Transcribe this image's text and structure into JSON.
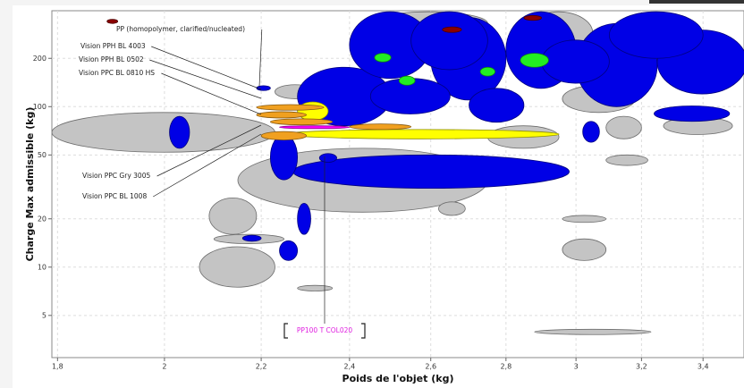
{
  "chart_data": {
    "type": "range-bubble",
    "xlabel": "Poids de l'objet (kg)",
    "ylabel": "Charge Max admissible (kg)",
    "xscale": "log",
    "yscale": "log",
    "grid": true,
    "xlim": [
      1.79,
      3.54
    ],
    "ylim": [
      2.73,
      396
    ],
    "xticks": [
      {
        "value": 1.8,
        "label": "1,8"
      },
      2,
      {
        "value": 2.2,
        "label": "2,2"
      },
      {
        "value": 2.4,
        "label": "2,4"
      },
      {
        "value": 2.6,
        "label": "2,6"
      },
      {
        "value": 2.8,
        "label": "2,8"
      },
      3,
      {
        "value": 3.2,
        "label": "3,2"
      },
      {
        "value": 3.4,
        "label": "3,4"
      }
    ],
    "yticks": [
      5,
      10,
      20,
      50,
      100,
      200
    ],
    "annotations": [
      "PP (homopolymer, clarified/nucleated)",
      "Vision PPH BL 4003",
      "Vision PPH BL 0502",
      "Vision PPC BL 0810 HS",
      "Vision PPC Gry 3005",
      "Vision PPC BL 1008",
      "PP100 T COL020"
    ],
    "series": [
      {
        "color": "#c4c4c4",
        "values": [
          [
            1.79,
            2.23,
            52,
            92
          ],
          [
            2.15,
            2.75,
            22,
            55
          ],
          [
            2.07,
            2.23,
            7.5,
            13.4
          ],
          [
            2.09,
            2.19,
            16,
            27
          ],
          [
            2.1,
            2.25,
            14,
            16
          ],
          [
            2.28,
            2.36,
            7.1,
            7.7
          ],
          [
            2.96,
            3.09,
            11,
            15
          ],
          [
            2.88,
            3.23,
            3.8,
            4.1
          ],
          [
            2.96,
            3.09,
            19,
            21
          ],
          [
            3.09,
            3.2,
            63,
            87
          ],
          [
            2.62,
            2.69,
            21,
            25.5
          ],
          [
            2.85,
            3.05,
            210,
            390
          ],
          [
            2.45,
            2.75,
            280,
            390
          ],
          [
            2.23,
            2.32,
            112,
            137
          ],
          [
            3.09,
            3.22,
            43,
            50
          ],
          [
            2.75,
            2.95,
            55,
            76
          ],
          [
            2.96,
            3.18,
            92,
            136
          ],
          [
            3.27,
            3.5,
            67,
            86
          ]
        ]
      },
      {
        "color": "#0000e6",
        "values": [
          [
            2.27,
            2.98,
            31,
            50
          ],
          [
            2.01,
            2.05,
            55,
            87
          ],
          [
            2.28,
            2.31,
            16,
            25
          ],
          [
            2.24,
            2.28,
            11,
            14.6
          ],
          [
            2.16,
            2.2,
            14.5,
            15.8
          ],
          [
            3.24,
            3.49,
            81,
            101
          ],
          [
            2.22,
            2.28,
            35,
            67
          ],
          [
            2.28,
            2.5,
            76,
            176
          ],
          [
            2.4,
            2.6,
            150,
            390
          ],
          [
            2.6,
            2.8,
            110,
            360
          ],
          [
            2.8,
            3.0,
            130,
            390
          ],
          [
            3.0,
            3.25,
            100,
            330
          ],
          [
            3.25,
            3.55,
            120,
            300
          ],
          [
            2.55,
            2.75,
            170,
            390
          ],
          [
            2.45,
            2.65,
            90,
            150
          ],
          [
            2.7,
            2.85,
            80,
            130
          ],
          [
            2.9,
            3.1,
            140,
            260
          ],
          [
            3.1,
            3.4,
            200,
            390
          ],
          [
            3.02,
            3.07,
            60,
            81
          ],
          [
            2.33,
            2.37,
            45,
            51
          ],
          [
            2.19,
            2.22,
            126,
            135
          ]
        ]
      },
      {
        "color": "#ffff00",
        "values": [
          [
            2.25,
            2.95,
            63,
            72
          ],
          [
            2.28,
            2.35,
            82,
            107
          ]
        ]
      },
      {
        "color": "#f0a020",
        "values": [
          [
            2.19,
            2.34,
            95,
            103
          ],
          [
            2.19,
            2.3,
            85,
            93
          ],
          [
            2.22,
            2.36,
            77,
            84
          ],
          [
            2.2,
            2.3,
            62,
            70
          ],
          [
            2.4,
            2.55,
            72,
            78
          ]
        ]
      },
      {
        "color": "#ff00ff",
        "values": [
          [
            2.24,
            2.4,
            73,
            76
          ]
        ]
      },
      {
        "color": "#22ee22",
        "values": [
          [
            2.46,
            2.5,
            190,
            215
          ],
          [
            2.52,
            2.56,
            136,
            155
          ],
          [
            2.84,
            2.92,
            176,
            215
          ],
          [
            2.73,
            2.77,
            155,
            176
          ]
        ]
      },
      {
        "color": "#8b0000",
        "values": [
          [
            2.63,
            2.68,
            290,
            314
          ],
          [
            2.85,
            2.9,
            345,
            370
          ],
          [
            1.89,
            1.91,
            330,
            350
          ]
        ]
      }
    ]
  }
}
